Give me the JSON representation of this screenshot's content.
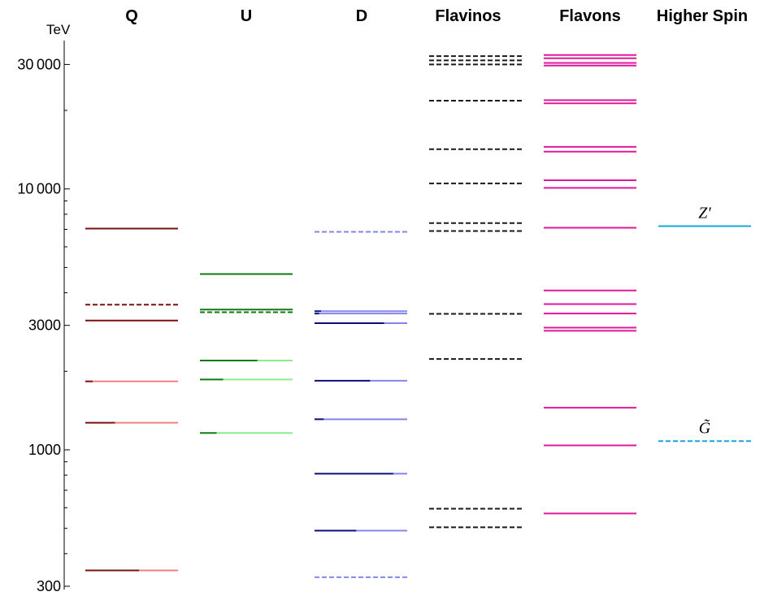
{
  "chart_data": {
    "type": "spectrum-levels",
    "title": "",
    "ylabel": "TeV",
    "yscale": "log",
    "ylim": [
      300,
      34000
    ],
    "yticks_major": [
      {
        "value": 300,
        "label": "300"
      },
      {
        "value": 1000,
        "label": "1000"
      },
      {
        "value": 3000,
        "label": "3000"
      },
      {
        "value": 10000,
        "label": "10 000"
      },
      {
        "value": 30000,
        "label": "30 000"
      }
    ],
    "yticks_minor": [
      400,
      500,
      600,
      700,
      800,
      900,
      2000,
      4000,
      5000,
      6000,
      7000,
      8000,
      9000,
      20000
    ],
    "columns": [
      {
        "key": "Q",
        "label": "Q",
        "levels": [
          {
            "value": 7050,
            "dark": 1.0,
            "dashed": false
          },
          {
            "value": 3600,
            "dark": 1.0,
            "dashed": true
          },
          {
            "value": 3130,
            "dark": 1.0,
            "dashed": false
          },
          {
            "value": 1830,
            "dark": 0.08,
            "dashed": false
          },
          {
            "value": 1270,
            "dark": 0.32,
            "dashed": false
          },
          {
            "value": 345,
            "dark": 0.58,
            "dashed": false
          }
        ]
      },
      {
        "key": "U",
        "label": "U",
        "levels": [
          {
            "value": 4720,
            "dark": 1.0,
            "dashed": false
          },
          {
            "value": 3450,
            "dark": 1.0,
            "dashed": false
          },
          {
            "value": 3370,
            "dark": 1.0,
            "dashed": true
          },
          {
            "value": 2200,
            "dark": 0.62,
            "dashed": false
          },
          {
            "value": 1860,
            "dark": 0.25,
            "dashed": false
          },
          {
            "value": 1160,
            "dark": 0.18,
            "dashed": false
          }
        ]
      },
      {
        "key": "D",
        "label": "D",
        "levels": [
          {
            "value": 6850,
            "dark": 0.0,
            "dashed": true
          },
          {
            "value": 3400,
            "dark": 0.07,
            "dashed": false
          },
          {
            "value": 3330,
            "dark": 0.05,
            "dashed": false
          },
          {
            "value": 3060,
            "dark": 0.75,
            "dashed": false
          },
          {
            "value": 1840,
            "dark": 0.6,
            "dashed": false
          },
          {
            "value": 1310,
            "dark": 0.1,
            "dashed": false
          },
          {
            "value": 810,
            "dark": 0.85,
            "dashed": false
          },
          {
            "value": 490,
            "dark": 0.45,
            "dashed": false
          },
          {
            "value": 325,
            "dark": 0.0,
            "dashed": true
          }
        ]
      },
      {
        "key": "Flavinos",
        "label": "Flavinos",
        "color": "#1a1a1a",
        "levels": [
          {
            "value": 32300,
            "dashed": true
          },
          {
            "value": 31100,
            "dashed": true
          },
          {
            "value": 30000,
            "dashed": true
          },
          {
            "value": 21800,
            "dashed": true
          },
          {
            "value": 14200,
            "dashed": true
          },
          {
            "value": 10500,
            "dashed": true
          },
          {
            "value": 7400,
            "dashed": true
          },
          {
            "value": 6900,
            "dashed": true
          },
          {
            "value": 3320,
            "dashed": true
          },
          {
            "value": 2230,
            "dashed": true
          },
          {
            "value": 595,
            "dashed": true
          },
          {
            "value": 505,
            "dashed": true
          }
        ]
      },
      {
        "key": "Flavons",
        "label": "Flavons",
        "color": "#e0189b",
        "levels": [
          {
            "value": 32600,
            "dashed": false
          },
          {
            "value": 31700,
            "dashed": false
          },
          {
            "value": 30400,
            "dashed": false
          },
          {
            "value": 29700,
            "dashed": false
          },
          {
            "value": 21900,
            "dashed": false
          },
          {
            "value": 21300,
            "dashed": false
          },
          {
            "value": 14500,
            "dashed": false
          },
          {
            "value": 13900,
            "dashed": false
          },
          {
            "value": 10800,
            "dashed": false
          },
          {
            "value": 10100,
            "dashed": false
          },
          {
            "value": 7100,
            "dashed": false
          },
          {
            "value": 4080,
            "dashed": false
          },
          {
            "value": 3620,
            "dashed": false
          },
          {
            "value": 3330,
            "dashed": false
          },
          {
            "value": 2940,
            "dashed": false
          },
          {
            "value": 2860,
            "dashed": false
          },
          {
            "value": 1450,
            "dashed": false
          },
          {
            "value": 1040,
            "dashed": false
          },
          {
            "value": 570,
            "dashed": false
          }
        ]
      },
      {
        "key": "HigherSpin",
        "label": "Higher Spin",
        "color": "#17a6dd",
        "levels": [
          {
            "value": 7200,
            "dashed": false,
            "label": "Z′"
          },
          {
            "value": 1080,
            "dashed": true,
            "label": "G̃"
          }
        ]
      }
    ],
    "colors": {
      "Q": {
        "dark": "#7a1010",
        "light": "#f08080"
      },
      "U": {
        "dark": "#0f7a10",
        "light": "#88ee88"
      },
      "D": {
        "dark": "#0d0d7a",
        "light": "#8585ea"
      },
      "Flavinos": "#1a1a1a",
      "Flavons": "#e0189b",
      "HigherSpin": "#17a6dd"
    }
  }
}
